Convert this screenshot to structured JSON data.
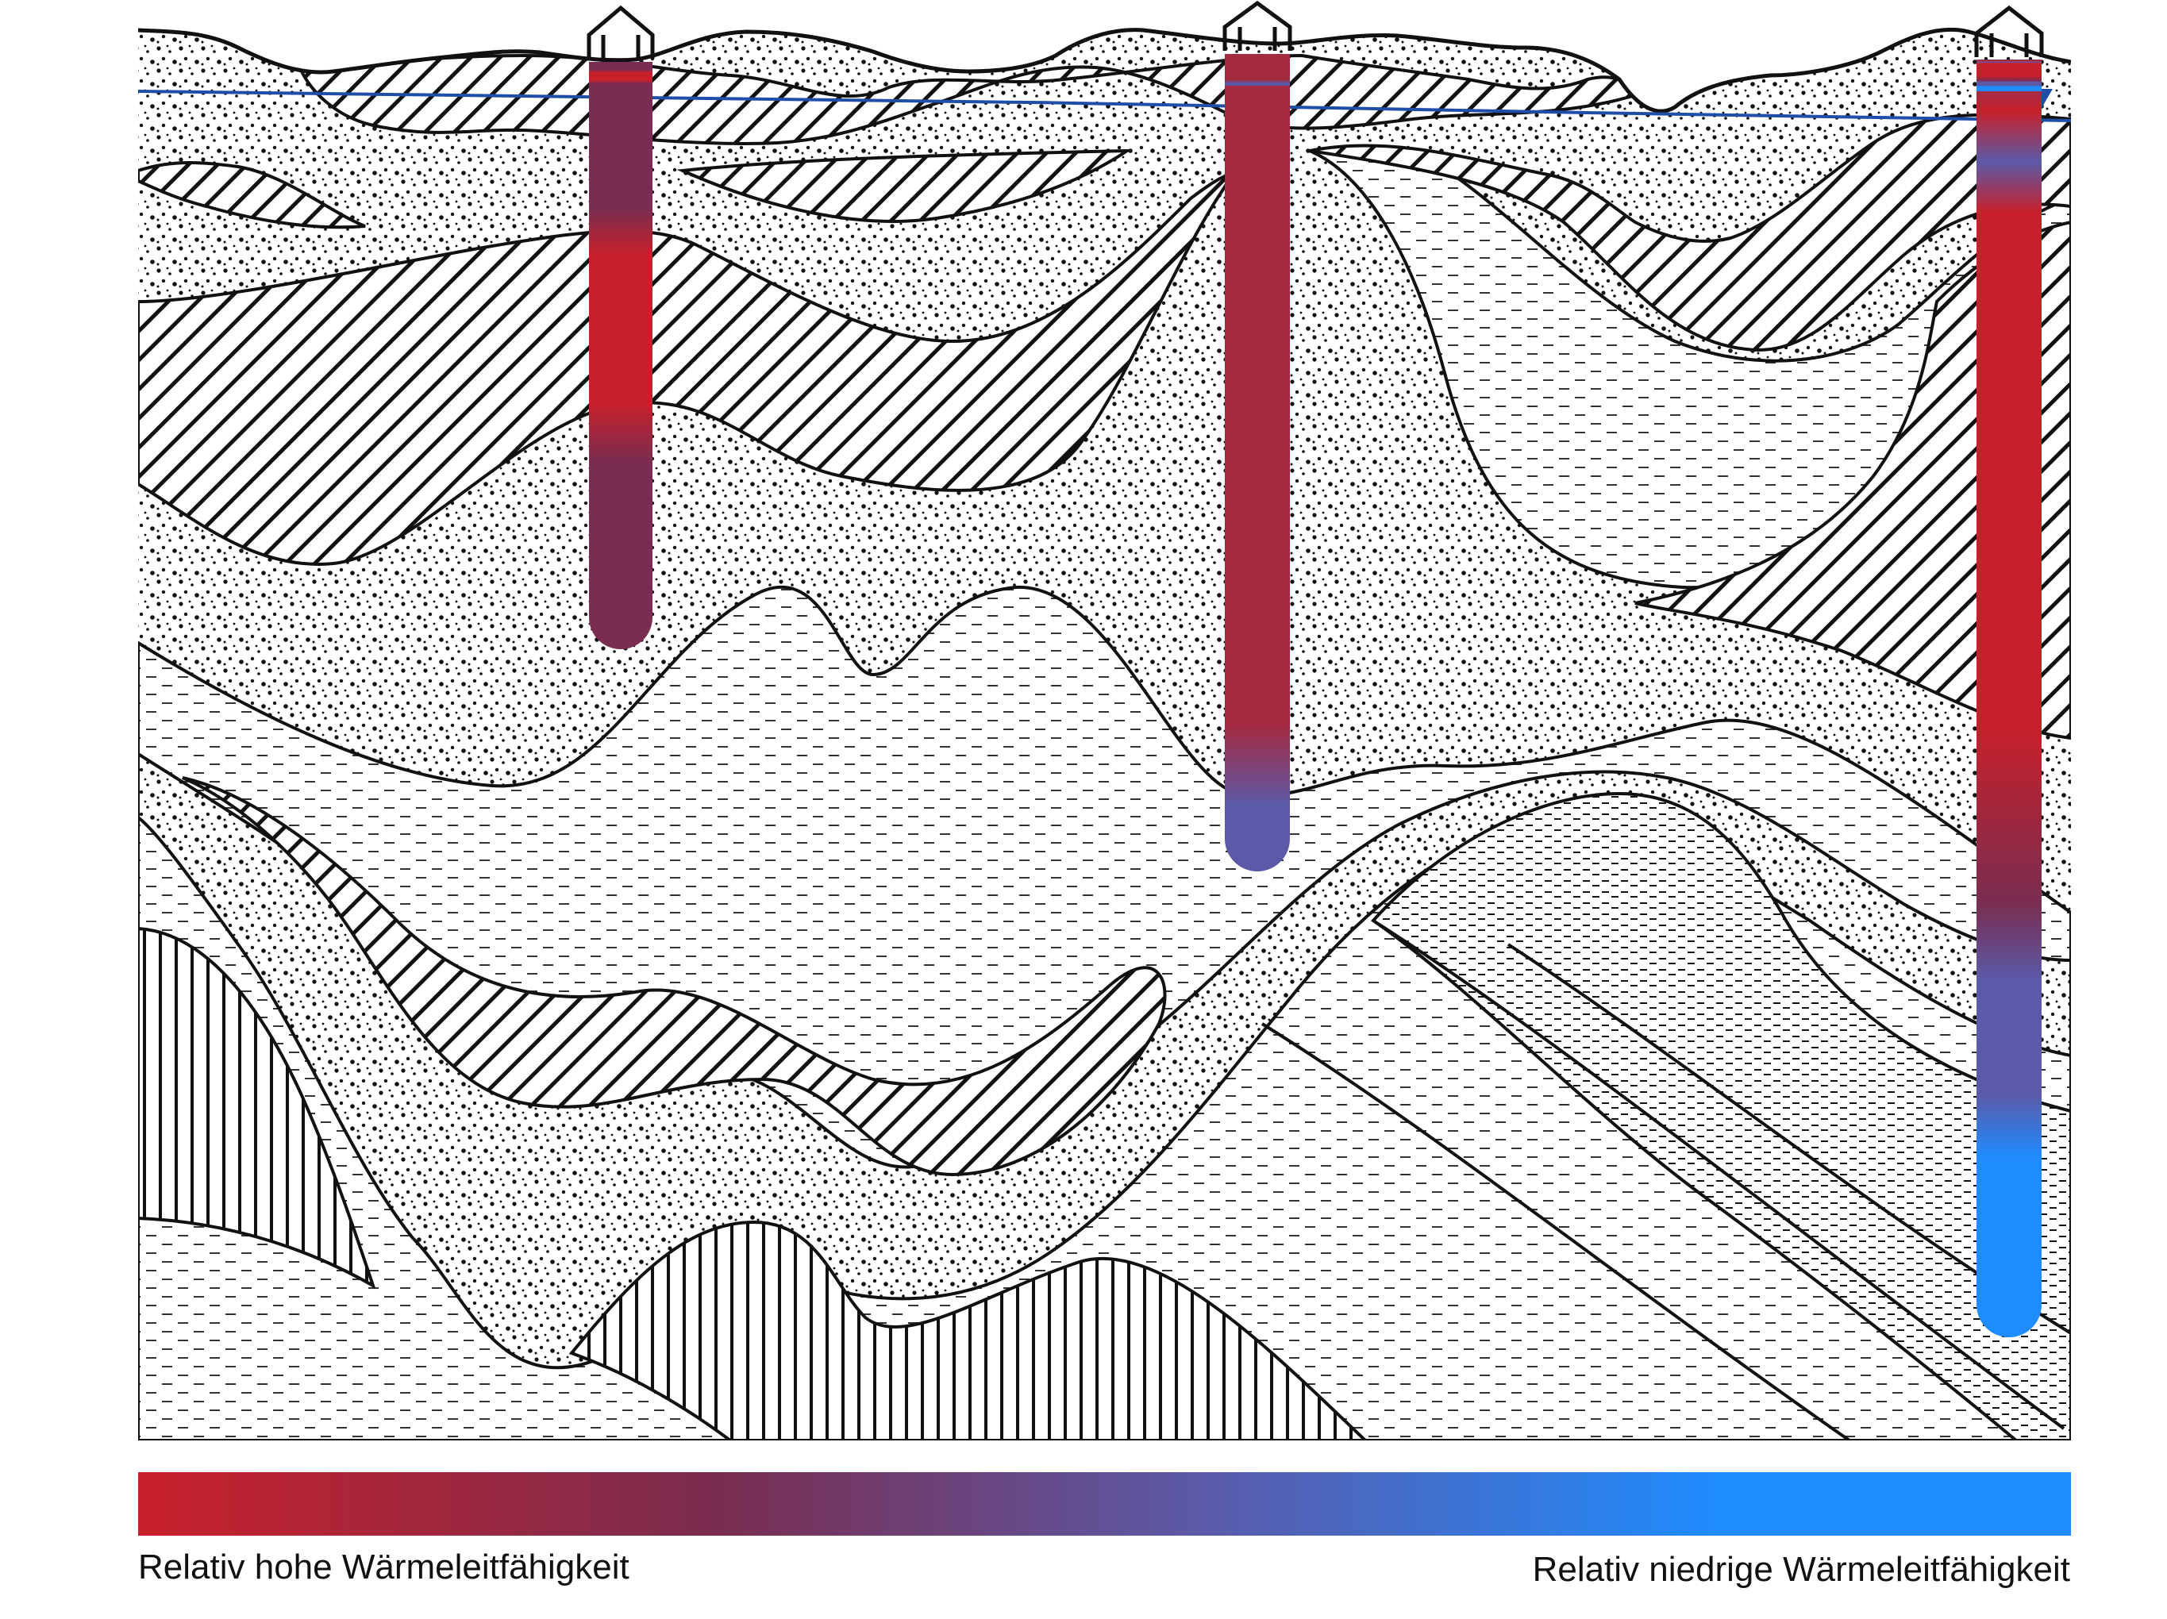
{
  "legend": {
    "high_label": "Relativ hohe Wärmeleitfähigkeit",
    "low_label": "Relativ niedrige Wärmeleitfähigkeit",
    "colors": [
      "#c8202a",
      "#7a2d50",
      "#5b5aa8",
      "#1e8cff"
    ]
  },
  "boreholes": [
    {
      "name": "borehole-left",
      "depth_level": 0.39
    },
    {
      "name": "borehole-middle",
      "depth_level": 0.55
    },
    {
      "name": "borehole-right",
      "depth_level": 0.88
    }
  ],
  "groundwater_color": "#1f4ea8",
  "layer_patterns": [
    "dotted-sand",
    "diagonal-hatch",
    "dashed-clay",
    "vertical-hatch",
    "fine-dashed"
  ]
}
